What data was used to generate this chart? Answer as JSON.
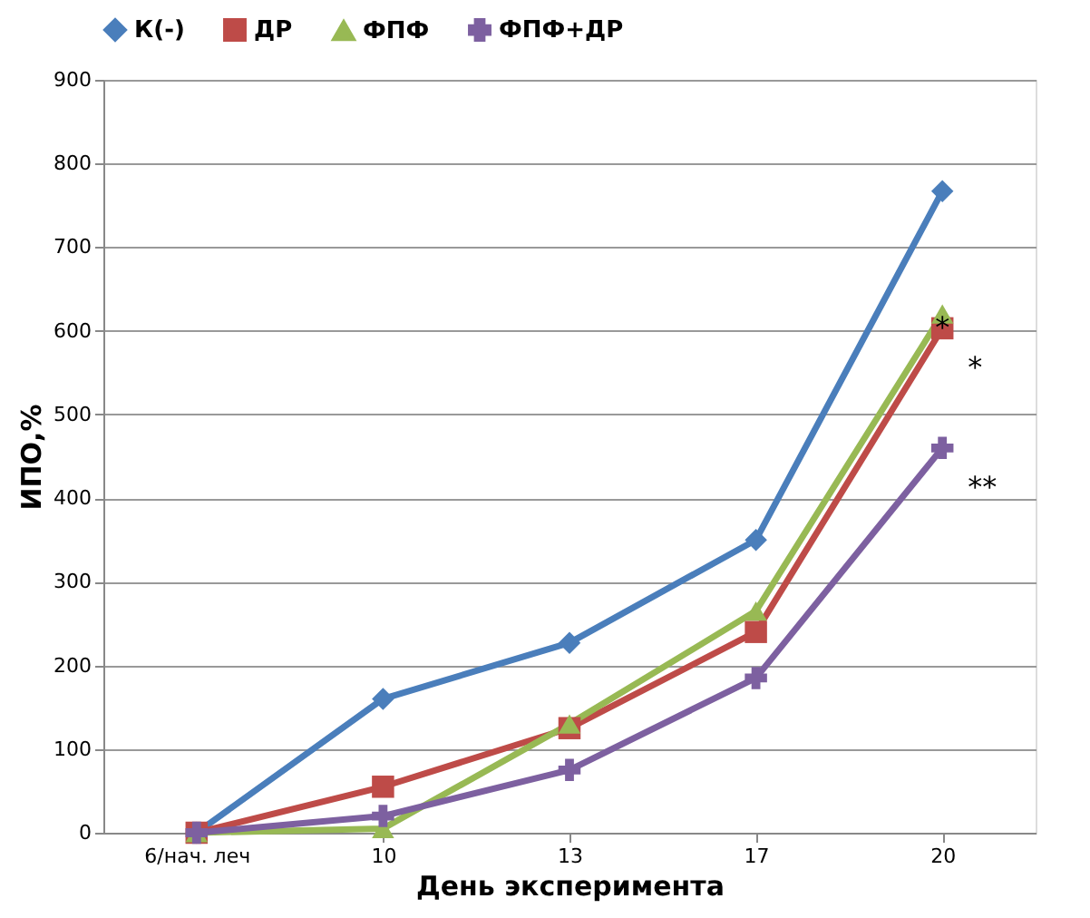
{
  "chart_data": {
    "type": "line",
    "xlabel": "День эксперимента",
    "ylabel": "ИПО,%",
    "categories": [
      "6/нач. леч",
      "10",
      "13",
      "17",
      "20"
    ],
    "series": [
      {
        "name": "К(-)",
        "color": "#4a7ebb",
        "marker": "diamond",
        "values": [
          0,
          160,
          227,
          350,
          767
        ]
      },
      {
        "name": "ДР",
        "color": "#be4b48",
        "marker": "square",
        "values": [
          0,
          55,
          125,
          240,
          603
        ]
      },
      {
        "name": "ФПФ",
        "color": "#98b954",
        "marker": "triangle",
        "values": [
          0,
          5,
          130,
          265,
          620
        ]
      },
      {
        "name": "ФПФ+ДР",
        "color": "#7d60a0",
        "marker": "cross",
        "values": [
          0,
          20,
          75,
          185,
          460
        ]
      }
    ],
    "ylim": [
      0,
      900
    ],
    "yticks": [
      0,
      100,
      200,
      300,
      400,
      500,
      600,
      700,
      800,
      900
    ],
    "grid": "y",
    "legend": "top",
    "line_style": "solid",
    "annotations": [
      {
        "text": "*",
        "x": "20",
        "y": 603
      },
      {
        "text": "*",
        "x": "20",
        "y": 603
      },
      {
        "text": "**",
        "x": "20",
        "y": 460
      }
    ]
  }
}
